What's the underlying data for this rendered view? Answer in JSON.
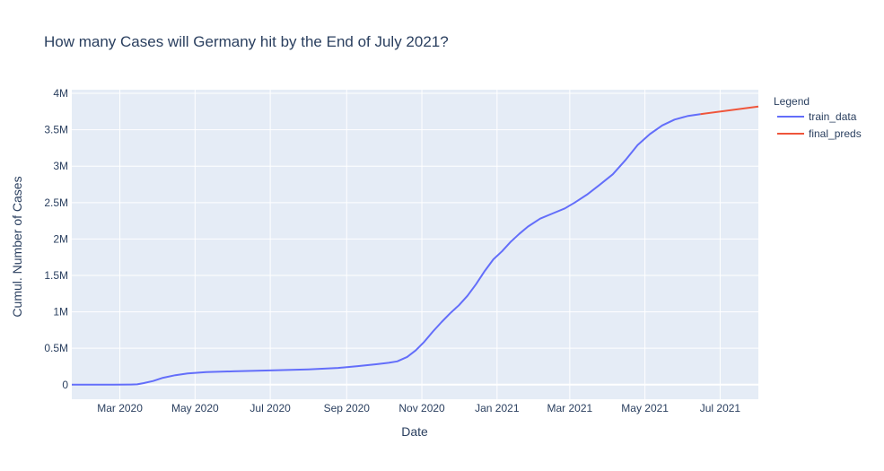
{
  "chart_data": {
    "type": "line",
    "title": "How many Cases will Germany hit by the End of July 2021?",
    "xlabel": "Date",
    "ylabel": "Cumul. Number of Cases",
    "legend_title": "Legend",
    "legend_position": "right",
    "grid": true,
    "xlim": [
      "2020-01-22",
      "2021-08-01"
    ],
    "ylim": [
      -200000,
      4050000
    ],
    "x_ticks": [
      {
        "date": "2020-03-01",
        "label": "Mar 2020"
      },
      {
        "date": "2020-05-01",
        "label": "May 2020"
      },
      {
        "date": "2020-07-01",
        "label": "Jul 2020"
      },
      {
        "date": "2020-09-01",
        "label": "Sep 2020"
      },
      {
        "date": "2020-11-01",
        "label": "Nov 2020"
      },
      {
        "date": "2021-01-01",
        "label": "Jan 2021"
      },
      {
        "date": "2021-03-01",
        "label": "Mar 2021"
      },
      {
        "date": "2021-05-01",
        "label": "May 2021"
      },
      {
        "date": "2021-07-01",
        "label": "Jul 2021"
      }
    ],
    "y_ticks": [
      {
        "value": 0,
        "label": "0"
      },
      {
        "value": 500000,
        "label": "0.5M"
      },
      {
        "value": 1000000,
        "label": "1M"
      },
      {
        "value": 1500000,
        "label": "1.5M"
      },
      {
        "value": 2000000,
        "label": "2M"
      },
      {
        "value": 2500000,
        "label": "2.5M"
      },
      {
        "value": 3000000,
        "label": "3M"
      },
      {
        "value": 3500000,
        "label": "3.5M"
      },
      {
        "value": 4000000,
        "label": "4M"
      }
    ],
    "series": [
      {
        "name": "train_data",
        "color": "#636efa",
        "points": [
          [
            "2020-01-22",
            0
          ],
          [
            "2020-02-10",
            20
          ],
          [
            "2020-02-25",
            100
          ],
          [
            "2020-03-10",
            1500
          ],
          [
            "2020-03-15",
            5000
          ],
          [
            "2020-03-20",
            20000
          ],
          [
            "2020-03-28",
            50000
          ],
          [
            "2020-04-05",
            95000
          ],
          [
            "2020-04-15",
            130000
          ],
          [
            "2020-04-25",
            155000
          ],
          [
            "2020-05-10",
            172000
          ],
          [
            "2020-06-01",
            183000
          ],
          [
            "2020-07-01",
            195000
          ],
          [
            "2020-08-01",
            210000
          ],
          [
            "2020-08-25",
            230000
          ],
          [
            "2020-09-10",
            255000
          ],
          [
            "2020-09-25",
            280000
          ],
          [
            "2020-10-05",
            300000
          ],
          [
            "2020-10-12",
            320000
          ],
          [
            "2020-10-20",
            380000
          ],
          [
            "2020-10-27",
            470000
          ],
          [
            "2020-11-03",
            590000
          ],
          [
            "2020-11-10",
            730000
          ],
          [
            "2020-11-17",
            860000
          ],
          [
            "2020-11-24",
            980000
          ],
          [
            "2020-12-01",
            1090000
          ],
          [
            "2020-12-08",
            1220000
          ],
          [
            "2020-12-15",
            1380000
          ],
          [
            "2020-12-22",
            1560000
          ],
          [
            "2020-12-29",
            1720000
          ],
          [
            "2021-01-05",
            1830000
          ],
          [
            "2021-01-12",
            1960000
          ],
          [
            "2021-01-19",
            2070000
          ],
          [
            "2021-01-26",
            2170000
          ],
          [
            "2021-02-05",
            2280000
          ],
          [
            "2021-02-15",
            2350000
          ],
          [
            "2021-02-25",
            2420000
          ],
          [
            "2021-03-05",
            2500000
          ],
          [
            "2021-03-15",
            2610000
          ],
          [
            "2021-03-25",
            2740000
          ],
          [
            "2021-04-05",
            2890000
          ],
          [
            "2021-04-15",
            3080000
          ],
          [
            "2021-04-25",
            3290000
          ],
          [
            "2021-05-05",
            3440000
          ],
          [
            "2021-05-15",
            3560000
          ],
          [
            "2021-05-25",
            3640000
          ],
          [
            "2021-06-05",
            3690000
          ],
          [
            "2021-06-15",
            3715000
          ]
        ]
      },
      {
        "name": "final_preds",
        "color": "#ef553b",
        "points": [
          [
            "2021-06-15",
            3715000
          ],
          [
            "2021-08-01",
            3820000
          ]
        ]
      }
    ]
  }
}
